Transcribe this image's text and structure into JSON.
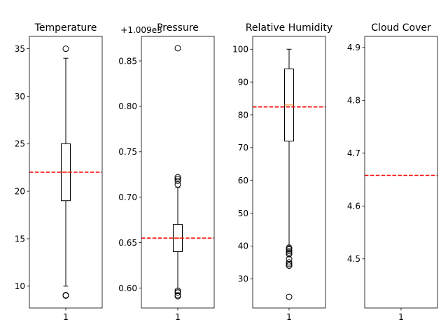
{
  "chart_data": [
    {
      "type": "box",
      "title": "Temperature",
      "xticks": [
        "1"
      ],
      "ylim": [
        7.7,
        36.3
      ],
      "yticks": [
        10,
        15,
        20,
        25,
        30,
        35
      ],
      "ytick_labels": [
        "10",
        "15",
        "20",
        "25",
        "30",
        "35"
      ],
      "box": {
        "whislo": 10,
        "q1": 19,
        "med": 22,
        "q3": 25,
        "whishi": 34,
        "fliers": [
          35,
          9,
          9.05
        ]
      },
      "mean_line": 22.0,
      "colors": {
        "median": "#ff7f0e",
        "mean_line": "#ff0000"
      }
    },
    {
      "type": "box",
      "title": "Pressure",
      "offset_text": "+1.009e3",
      "xticks": [
        "1"
      ],
      "ylim": [
        0.578,
        0.877
      ],
      "yticks": [
        0.6,
        0.65,
        0.7,
        0.75,
        0.8,
        0.85
      ],
      "ytick_labels": [
        "0.60",
        "0.65",
        "0.70",
        "0.75",
        "0.80",
        "0.85"
      ],
      "box": {
        "whislo": 0.598,
        "q1": 0.64,
        "med": 0.655,
        "q3": 0.67,
        "whishi": 0.711,
        "fliers": [
          0.864,
          0.722,
          0.72,
          0.718,
          0.714,
          0.597,
          0.595,
          0.592,
          0.591
        ]
      },
      "mean_line": 0.655,
      "colors": {
        "median": "#ff7f0e",
        "mean_line": "#ff0000"
      }
    },
    {
      "type": "box",
      "title": "Relative Humidity",
      "xticks": [
        "1"
      ],
      "ylim": [
        21.1,
        103.9
      ],
      "yticks": [
        30,
        40,
        50,
        60,
        70,
        80,
        90,
        100
      ],
      "ytick_labels": [
        "30",
        "40",
        "50",
        "60",
        "70",
        "80",
        "90",
        "100"
      ],
      "box": {
        "whislo": 40,
        "q1": 72,
        "med": 83,
        "q3": 94,
        "whishi": 100,
        "fliers": [
          39.5,
          39,
          38.5,
          38,
          37.5,
          36,
          35,
          34.5,
          34,
          24.5
        ]
      },
      "mean_line": 82.4,
      "colors": {
        "median": "#ff7f0e",
        "mean_line": "#ff0000"
      }
    },
    {
      "type": "box",
      "title": "Cloud Cover",
      "xticks": [
        "1"
      ],
      "ylim": [
        4.407,
        4.921
      ],
      "yticks": [
        4.5,
        4.6,
        4.7,
        4.8,
        4.9
      ],
      "ytick_labels": [
        "4.5",
        "4.6",
        "4.7",
        "4.8",
        "4.9"
      ],
      "box": null,
      "mean_line": 4.658,
      "colors": {
        "mean_line": "#ff0000"
      }
    }
  ]
}
